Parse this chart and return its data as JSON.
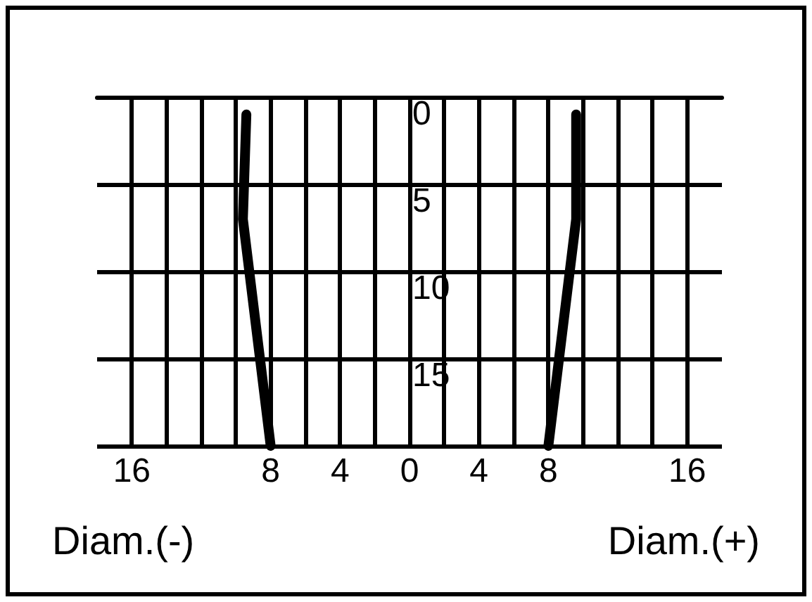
{
  "chart_data": {
    "type": "line",
    "annotations": [
      "Diam.(-)",
      "Diam.(+)"
    ],
    "series": [
      {
        "color": "#000000",
        "x": [
          -9.4,
          -9.6,
          -8
        ],
        "values": [
          1,
          7,
          20
        ]
      },
      {
        "color": "#000000",
        "x": [
          9.6,
          9.6,
          8
        ],
        "values": [
          1,
          7,
          20
        ]
      }
    ],
    "xlim": [
      -18,
      18
    ],
    "xticks": [
      {
        "value": -16,
        "label": "16"
      },
      {
        "value": -14,
        "label": null
      },
      {
        "value": -12,
        "label": null
      },
      {
        "value": -10,
        "label": null
      },
      {
        "value": -8,
        "label": "8"
      },
      {
        "value": -6,
        "label": null
      },
      {
        "value": -4,
        "label": "4"
      },
      {
        "value": -2,
        "label": null
      },
      0,
      {
        "value": 2,
        "label": null
      },
      4,
      {
        "value": 6,
        "label": null
      },
      8,
      {
        "value": 10,
        "label": null
      },
      {
        "value": 12,
        "label": null
      },
      {
        "value": 14,
        "label": null
      },
      16
    ],
    "ylim": [
      20,
      0
    ],
    "yticks": [
      0,
      5,
      10,
      15,
      {
        "value": 20,
        "label": null
      }
    ],
    "grid": true,
    "marker": "none",
    "line_style": "solid"
  }
}
